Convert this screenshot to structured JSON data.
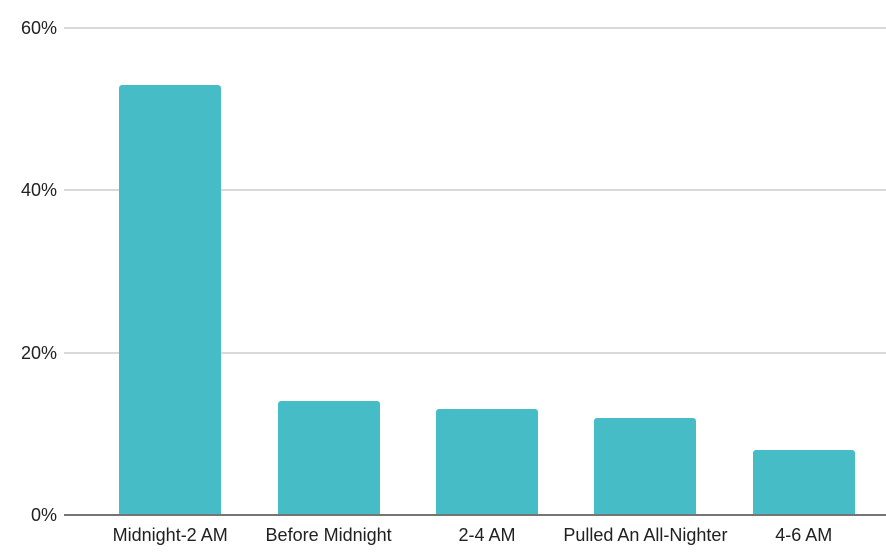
{
  "chart_data": {
    "type": "bar",
    "categories": [
      "Midnight-2 AM",
      "Before Midnight",
      "2-4 AM",
      "Pulled An All-Nighter",
      "4-6 AM"
    ],
    "values": [
      53,
      14,
      13,
      12,
      8
    ],
    "value_unit": "%",
    "ylim": [
      0,
      60
    ],
    "yticks": [
      0,
      20,
      40,
      60
    ],
    "ytick_labels": [
      "0%",
      "20%",
      "40%",
      "60%"
    ],
    "grid": true,
    "legend": "none",
    "bar_color": "#46bdc6"
  },
  "colors": {
    "bar": "#46bdc6",
    "gridline": "#d9d9d9",
    "axis_line": "#757575",
    "label_text": "#212121",
    "background": "#ffffff"
  }
}
